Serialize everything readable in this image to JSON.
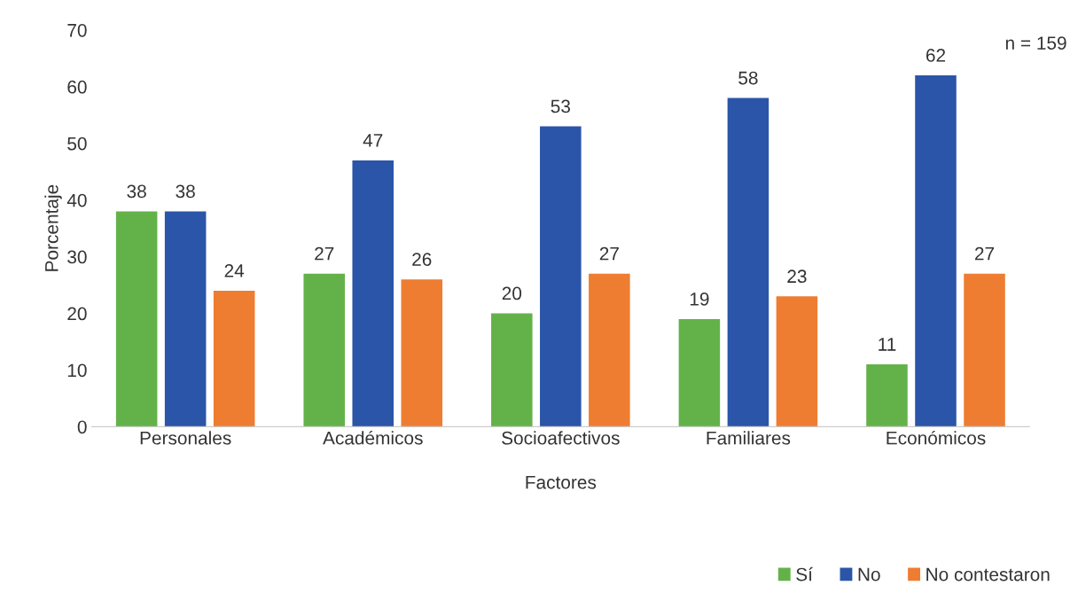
{
  "chart_data": {
    "type": "bar",
    "xlabel": "Factores",
    "ylabel": "Porcentaje",
    "categories": [
      "Personales",
      "Académicos",
      "Socioafectivos",
      "Familiares",
      "Económicos"
    ],
    "series": [
      {
        "name": "Sí",
        "color": "#63b249",
        "values": [
          38,
          27,
          20,
          19,
          11
        ]
      },
      {
        "name": "No",
        "color": "#2a55a8",
        "values": [
          38,
          47,
          53,
          58,
          62
        ]
      },
      {
        "name": "No contestaron",
        "color": "#ee7d31",
        "values": [
          24,
          26,
          27,
          23,
          27
        ]
      }
    ],
    "ylim": [
      0,
      70
    ],
    "yticks": [
      0,
      10,
      20,
      30,
      40,
      50,
      60,
      70
    ],
    "grid": false,
    "legend": "bottom right",
    "data_labels": true,
    "annotations": [
      "n = 159"
    ]
  }
}
